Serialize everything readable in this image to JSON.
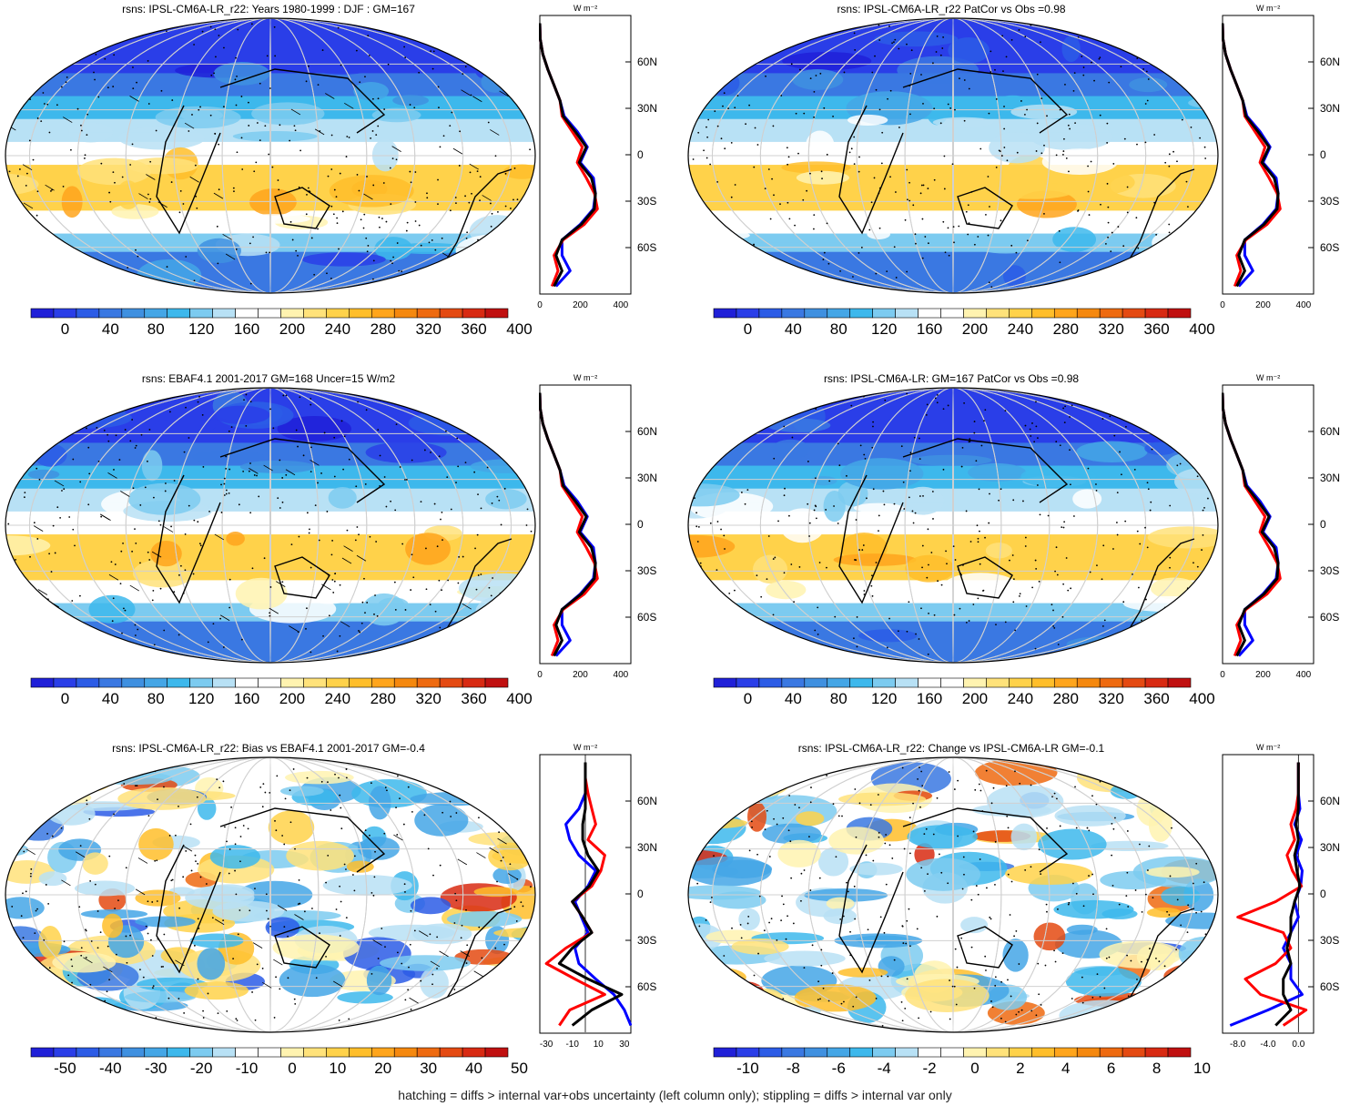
{
  "colors": {
    "palette": [
      "#2020d8",
      "#2a3ee8",
      "#2c5ce6",
      "#3a78e2",
      "#3f90e0",
      "#44a6e6",
      "#3db8ec",
      "#7ccbf0",
      "#b8e1f5",
      "#ffffff",
      "#ffffff",
      "#fff3b0",
      "#ffe27a",
      "#ffd24a",
      "#ffbe2a",
      "#ffa51c",
      "#f5880e",
      "#ee6a10",
      "#e44a12",
      "#d82a12",
      "#c01010"
    ],
    "model_line": "#0000ff",
    "obs_line": "#ff0000",
    "other_line": "#000000"
  },
  "caption": "hatching = diffs > internal var+obs uncertainty (left column only); stippling = diffs > internal var only",
  "panels": [
    {
      "title": "rsns: IPSL-CM6A-LR_r22: Years 1980-1999 : DJF : GM=167",
      "cbar": [
        "0",
        "40",
        "80",
        "120",
        "160",
        "200",
        "240",
        "280",
        "320",
        "360",
        "400"
      ],
      "xticks": [
        "0",
        "200",
        "400"
      ],
      "lats": [
        "60N",
        "30N",
        "0",
        "30S",
        "60S"
      ],
      "unit": "W m⁻²"
    },
    {
      "title": "rsns: IPSL-CM6A-LR_r22 PatCor vs Obs =0.98",
      "cbar": [
        "0",
        "40",
        "80",
        "120",
        "160",
        "200",
        "240",
        "280",
        "320",
        "360",
        "400"
      ],
      "xticks": [
        "0",
        "200",
        "400"
      ],
      "lats": [
        "60N",
        "30N",
        "0",
        "30S",
        "60S"
      ],
      "unit": "W m⁻²"
    },
    {
      "title": "rsns: EBAF4.1 2001-2017 GM=168 Uncer=15 W/m2",
      "cbar": [
        "0",
        "40",
        "80",
        "120",
        "160",
        "200",
        "240",
        "280",
        "320",
        "360",
        "400"
      ],
      "xticks": [
        "0",
        "200",
        "400"
      ],
      "lats": [
        "60N",
        "30N",
        "0",
        "30S",
        "60S"
      ],
      "unit": "W m⁻²"
    },
    {
      "title": "rsns: IPSL-CM6A-LR: GM=167 PatCor vs Obs =0.98",
      "cbar": [
        "0",
        "40",
        "80",
        "120",
        "160",
        "200",
        "240",
        "280",
        "320",
        "360",
        "400"
      ],
      "xticks": [
        "0",
        "200",
        "400"
      ],
      "lats": [
        "60N",
        "30N",
        "0",
        "30S",
        "60S"
      ],
      "unit": "W m⁻²"
    },
    {
      "title": "rsns: IPSL-CM6A-LR_r22: Bias vs EBAF4.1 2001-2017 GM=-0.4",
      "cbar": [
        "-50",
        "-40",
        "-30",
        "-20",
        "-10",
        "0",
        "10",
        "20",
        "30",
        "40",
        "50"
      ],
      "xticks": [
        "-30",
        "-10",
        "10",
        "30"
      ],
      "lats": [
        "60N",
        "30N",
        "0",
        "30S",
        "60S"
      ],
      "unit": "W m⁻²"
    },
    {
      "title": "rsns: IPSL-CM6A-LR_r22: Change vs IPSL-CM6A-LR GM=-0.1",
      "cbar": [
        "-10",
        "-8",
        "-6",
        "-4",
        "-2",
        "0",
        "2",
        "4",
        "6",
        "8",
        "10"
      ],
      "xticks": [
        "-8.0",
        "-4.0",
        "0.0"
      ],
      "lats": [
        "60N",
        "30N",
        "0",
        "30S",
        "60S"
      ],
      "unit": "W m⁻²"
    }
  ],
  "chart_data": [
    {
      "type": "line",
      "title": "rsns: IPSL-CM6A-LR_r22: Years 1980-1999 : DJF : GM=167",
      "xlabel": "W m-2",
      "xlim": [
        0,
        450
      ],
      "ylim": [
        -90,
        90
      ],
      "series": [
        {
          "color": "#0000ff",
          "y": [
            -85,
            -75,
            -65,
            -55,
            -45,
            -35,
            -25,
            -15,
            -5,
            5,
            15,
            25,
            35,
            45,
            55,
            65,
            75,
            85
          ],
          "x": [
            80,
            150,
            110,
            110,
            200,
            265,
            275,
            265,
            200,
            235,
            185,
            120,
            100,
            70,
            40,
            15,
            2,
            0
          ]
        },
        {
          "color": "#ff0000",
          "y": [
            -85,
            -75,
            -65,
            -55,
            -45,
            -35,
            -25,
            -15,
            -5,
            5,
            15,
            25,
            35,
            45,
            55,
            65,
            75,
            85
          ],
          "x": [
            60,
            90,
            70,
            115,
            220,
            285,
            270,
            230,
            185,
            210,
            160,
            110,
            100,
            70,
            40,
            15,
            2,
            0
          ]
        },
        {
          "color": "#000000",
          "y": [
            -85,
            -75,
            -65,
            -55,
            -45,
            -35,
            -25,
            -15,
            -5,
            5,
            15,
            25,
            35,
            45,
            55,
            65,
            75,
            85
          ],
          "x": [
            70,
            110,
            80,
            110,
            205,
            270,
            275,
            255,
            195,
            230,
            175,
            115,
            100,
            70,
            40,
            15,
            2,
            0
          ]
        }
      ]
    },
    {
      "type": "line",
      "title": "rsns: IPSL-CM6A-LR_r22 PatCor vs Obs =0.98",
      "xlabel": "W m-2",
      "xlim": [
        0,
        450
      ],
      "ylim": [
        -90,
        90
      ],
      "series": [
        {
          "color": "#0000ff",
          "y": [
            -85,
            -75,
            -65,
            -55,
            -45,
            -35,
            -25,
            -15,
            -5,
            5,
            15,
            25,
            35,
            45,
            55,
            65,
            75,
            85
          ],
          "x": [
            80,
            150,
            110,
            110,
            200,
            265,
            275,
            265,
            200,
            235,
            185,
            120,
            100,
            70,
            40,
            15,
            2,
            0
          ]
        },
        {
          "color": "#ff0000",
          "y": [
            -85,
            -75,
            -65,
            -55,
            -45,
            -35,
            -25,
            -15,
            -5,
            5,
            15,
            25,
            35,
            45,
            55,
            65,
            75,
            85
          ],
          "x": [
            60,
            90,
            70,
            115,
            220,
            285,
            270,
            230,
            185,
            210,
            160,
            110,
            100,
            70,
            40,
            15,
            2,
            0
          ]
        },
        {
          "color": "#000000",
          "y": [
            -85,
            -75,
            -65,
            -55,
            -45,
            -35,
            -25,
            -15,
            -5,
            5,
            15,
            25,
            35,
            45,
            55,
            65,
            75,
            85
          ],
          "x": [
            70,
            110,
            80,
            110,
            205,
            270,
            275,
            255,
            195,
            230,
            175,
            115,
            100,
            70,
            40,
            15,
            2,
            0
          ]
        }
      ]
    },
    {
      "type": "line",
      "title": "rsns: EBAF4.1 2001-2017 GM=168 Uncer=15 W/m2",
      "xlabel": "W m-2",
      "xlim": [
        0,
        450
      ],
      "ylim": [
        -90,
        90
      ],
      "series": [
        {
          "color": "#0000ff",
          "y": [
            -85,
            -75,
            -65,
            -55,
            -45,
            -35,
            -25,
            -15,
            -5,
            5,
            15,
            25,
            35,
            45,
            55,
            65,
            75,
            85
          ],
          "x": [
            80,
            150,
            110,
            110,
            200,
            265,
            275,
            265,
            200,
            235,
            185,
            120,
            100,
            70,
            40,
            15,
            2,
            0
          ]
        },
        {
          "color": "#ff0000",
          "y": [
            -85,
            -75,
            -65,
            -55,
            -45,
            -35,
            -25,
            -15,
            -5,
            5,
            15,
            25,
            35,
            45,
            55,
            65,
            75,
            85
          ],
          "x": [
            60,
            90,
            70,
            115,
            220,
            285,
            270,
            230,
            185,
            210,
            160,
            110,
            100,
            70,
            40,
            15,
            2,
            0
          ]
        },
        {
          "color": "#000000",
          "y": [
            -85,
            -75,
            -65,
            -55,
            -45,
            -35,
            -25,
            -15,
            -5,
            5,
            15,
            25,
            35,
            45,
            55,
            65,
            75,
            85
          ],
          "x": [
            70,
            110,
            80,
            110,
            205,
            270,
            275,
            255,
            195,
            230,
            175,
            115,
            100,
            70,
            40,
            15,
            2,
            0
          ]
        }
      ]
    },
    {
      "type": "line",
      "title": "rsns: IPSL-CM6A-LR: GM=167 PatCor vs Obs =0.98",
      "xlabel": "W m-2",
      "xlim": [
        0,
        450
      ],
      "ylim": [
        -90,
        90
      ],
      "series": [
        {
          "color": "#0000ff",
          "y": [
            -85,
            -75,
            -65,
            -55,
            -45,
            -35,
            -25,
            -15,
            -5,
            5,
            15,
            25,
            35,
            45,
            55,
            65,
            75,
            85
          ],
          "x": [
            80,
            150,
            110,
            110,
            200,
            265,
            275,
            265,
            200,
            235,
            185,
            120,
            100,
            70,
            40,
            15,
            2,
            0
          ]
        },
        {
          "color": "#ff0000",
          "y": [
            -85,
            -75,
            -65,
            -55,
            -45,
            -35,
            -25,
            -15,
            -5,
            5,
            15,
            25,
            35,
            45,
            55,
            65,
            75,
            85
          ],
          "x": [
            60,
            90,
            70,
            115,
            220,
            285,
            270,
            230,
            185,
            210,
            160,
            110,
            100,
            70,
            40,
            15,
            2,
            0
          ]
        },
        {
          "color": "#000000",
          "y": [
            -85,
            -75,
            -65,
            -55,
            -45,
            -35,
            -25,
            -15,
            -5,
            5,
            15,
            25,
            35,
            45,
            55,
            65,
            75,
            85
          ],
          "x": [
            70,
            110,
            80,
            110,
            205,
            270,
            275,
            255,
            195,
            230,
            175,
            115,
            100,
            70,
            40,
            15,
            2,
            0
          ]
        }
      ]
    },
    {
      "type": "line",
      "title": "rsns: IPSL-CM6A-LR_r22: Bias vs EBAF4.1 2001-2017 GM=-0.4",
      "xlabel": "W m-2",
      "xlim": [
        -35,
        35
      ],
      "ylim": [
        -90,
        90
      ],
      "series": [
        {
          "color": "#0000ff",
          "y": [
            -85,
            -75,
            -65,
            -55,
            -45,
            -35,
            -25,
            -15,
            -5,
            5,
            15,
            25,
            35,
            45,
            55,
            65,
            75,
            85
          ],
          "x": [
            35,
            30,
            22,
            8,
            -5,
            -8,
            2,
            -3,
            -8,
            2,
            8,
            -5,
            -12,
            -15,
            -5,
            0,
            0,
            0
          ]
        },
        {
          "color": "#ff0000",
          "y": [
            -85,
            -75,
            -65,
            -55,
            -45,
            -35,
            -25,
            -15,
            -5,
            5,
            15,
            25,
            35,
            45,
            55,
            65,
            75,
            85
          ],
          "x": [
            -20,
            -12,
            15,
            -8,
            -30,
            -15,
            5,
            -2,
            -10,
            5,
            12,
            15,
            2,
            8,
            5,
            2,
            0,
            0
          ]
        },
        {
          "color": "#000000",
          "y": [
            -85,
            -75,
            -65,
            -55,
            -45,
            -35,
            -25,
            -15,
            -5,
            5,
            15,
            25,
            35,
            45,
            55,
            65,
            75,
            85
          ],
          "x": [
            -10,
            5,
            28,
            2,
            -20,
            -10,
            5,
            -2,
            -10,
            3,
            10,
            2,
            -2,
            -2,
            0,
            0,
            0,
            0
          ]
        }
      ]
    },
    {
      "type": "line",
      "title": "rsns: IPSL-CM6A-LR_r22: Change vs IPSL-CM6A-LR GM=-0.1",
      "xlabel": "W m-2",
      "xlim": [
        -10,
        2
      ],
      "ylim": [
        -90,
        90
      ],
      "series": [
        {
          "color": "#0000ff",
          "y": [
            -85,
            -75,
            -65,
            -55,
            -45,
            -35,
            -25,
            -15,
            -5,
            5,
            15,
            25,
            35,
            45,
            55,
            65,
            75,
            85
          ],
          "x": [
            -9,
            -4,
            0.5,
            -1,
            -1,
            -2,
            -1,
            0,
            -0.5,
            0.3,
            0.5,
            -0.3,
            0.4,
            -0.5,
            0.2,
            0,
            0,
            0
          ]
        },
        {
          "color": "#ff0000",
          "y": [
            -85,
            -75,
            -65,
            -55,
            -45,
            -35,
            -25,
            -15,
            -5,
            5,
            15,
            25,
            35,
            45,
            55,
            65,
            75,
            85
          ],
          "x": [
            -2,
            1,
            -5,
            -7,
            -3,
            -1,
            -2,
            -8,
            -3,
            0.4,
            -0.8,
            -1.5,
            -0.5,
            -1,
            -0.3,
            0,
            0,
            0
          ]
        },
        {
          "color": "#000000",
          "y": [
            -85,
            -75,
            -65,
            -55,
            -45,
            -35,
            -25,
            -15,
            -5,
            5,
            15,
            25,
            35,
            45,
            55,
            65,
            75,
            85
          ],
          "x": [
            -3,
            -1,
            -2,
            -2,
            -1,
            -1.5,
            -1,
            -1,
            -0.5,
            0.2,
            -0.2,
            -0.5,
            0,
            -0.3,
            0,
            0,
            0,
            0
          ]
        }
      ]
    }
  ]
}
